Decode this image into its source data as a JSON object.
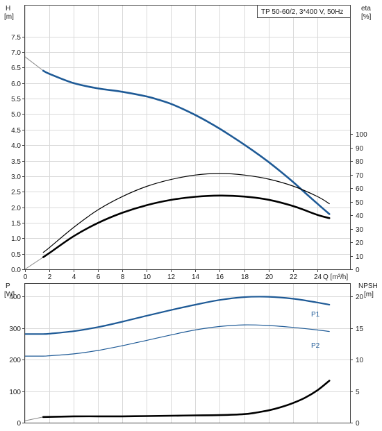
{
  "chart_data": [
    {
      "type": "line",
      "title": "TP 50-60/2, 3*400 V, 50Hz",
      "left_axis": {
        "label_line1": "H",
        "label_line2": "[m]",
        "ylim": [
          0,
          8.5
        ],
        "ticks": [
          "0.0",
          "0.5",
          "1.0",
          "1.5",
          "2.0",
          "2.5",
          "3.0",
          "3.5",
          "4.0",
          "4.5",
          "5.0",
          "5.5",
          "6.0",
          "6.5",
          "7.0",
          "7.5"
        ]
      },
      "right_axis": {
        "label_line1": "eta",
        "label_line2": "[%]",
        "ylim": [
          0,
          195
        ],
        "ticks": [
          "0",
          "10",
          "20",
          "30",
          "40",
          "50",
          "60",
          "70",
          "80",
          "90",
          "100"
        ]
      },
      "x_axis": {
        "label": "Q [m³/h]",
        "xlim": [
          0,
          26.7
        ],
        "ticks": [
          "0",
          "2",
          "4",
          "6",
          "8",
          "10",
          "12",
          "14",
          "16",
          "18",
          "20",
          "22",
          "24"
        ]
      },
      "grid": true,
      "series": [
        {
          "role": "head_extended",
          "axis": "left",
          "color": "#8a8a8a",
          "x": [
            0,
            1.5
          ],
          "y": [
            6.85,
            6.4
          ]
        },
        {
          "role": "head",
          "axis": "left",
          "color": "#1e5a96",
          "x": [
            1.5,
            2,
            4,
            6,
            8,
            10,
            11,
            12,
            13,
            14,
            15,
            16,
            17,
            18,
            19,
            20,
            21,
            22,
            23,
            24,
            25
          ],
          "y": [
            6.4,
            6.3,
            6.0,
            5.83,
            5.72,
            5.57,
            5.46,
            5.33,
            5.16,
            4.97,
            4.76,
            4.53,
            4.28,
            4.02,
            3.75,
            3.46,
            3.15,
            2.82,
            2.47,
            2.12,
            1.78
          ]
        },
        {
          "role": "efficiency_extended",
          "axis": "right",
          "color": "#8a8a8a",
          "x": [
            0,
            1.5
          ],
          "y": [
            0,
            9
          ]
        },
        {
          "role": "efficiency",
          "axis": "right",
          "color": "#000000",
          "x": [
            1.5,
            2,
            4,
            6,
            8,
            10,
            12,
            14,
            16,
            18,
            20,
            22,
            24,
            25
          ],
          "y": [
            9,
            12,
            24.5,
            34.3,
            41.8,
            47.4,
            51.3,
            53.6,
            54.5,
            53.8,
            51.4,
            46.8,
            40.3,
            37.8
          ]
        },
        {
          "role": "efficiency_thin",
          "axis": "right",
          "color": "#000000",
          "x": [
            1.5,
            2,
            4,
            6,
            8,
            10,
            12,
            14,
            16,
            18,
            20,
            22,
            24,
            25
          ],
          "y": [
            12.5,
            16,
            31,
            44,
            53.8,
            61.3,
            66.4,
            69.7,
            70.8,
            69.7,
            66.7,
            61.6,
            53.9,
            48.5
          ]
        }
      ]
    },
    {
      "type": "line",
      "left_axis": {
        "label_line1": "P",
        "label_line2": "[W]",
        "ylim": [
          0,
          440
        ],
        "ticks": [
          "0",
          "100",
          "200",
          "300",
          "400"
        ]
      },
      "right_axis": {
        "label_line1": "NPSH",
        "label_line2": "[m]",
        "ylim": [
          0,
          22
        ],
        "ticks": [
          "0",
          "5",
          "10",
          "15",
          "20"
        ]
      },
      "grid": true,
      "series": [
        {
          "name": "P1",
          "role": "power_p1",
          "axis": "left",
          "color": "#1e5a96",
          "x": [
            0,
            1.5,
            2,
            4,
            6,
            8,
            10,
            12,
            14,
            16,
            18,
            20,
            22,
            24,
            25
          ],
          "y": [
            281,
            281,
            282,
            290,
            303,
            320,
            339,
            357,
            374,
            389,
            398,
            399,
            393,
            381,
            374
          ]
        },
        {
          "name": "P2",
          "role": "power_p2",
          "axis": "left",
          "color": "#1e5a96",
          "x": [
            0,
            1.5,
            2,
            4,
            6,
            8,
            10,
            12,
            14,
            16,
            18,
            20,
            22,
            24,
            25
          ],
          "y": [
            211,
            211,
            212,
            218,
            229,
            244,
            261,
            278,
            294,
            305,
            310,
            308,
            302,
            294,
            289
          ]
        },
        {
          "role": "npsh_extended",
          "axis": "right",
          "color": "#8a8a8a",
          "x": [
            0,
            1.5
          ],
          "y": [
            0.3,
            0.9
          ]
        },
        {
          "role": "npsh",
          "axis": "right",
          "color": "#000000",
          "x": [
            1.5,
            4,
            6,
            8,
            10,
            12,
            14,
            16,
            18,
            19,
            20,
            21,
            22,
            23,
            24,
            25
          ],
          "y": [
            0.9,
            1.0,
            1.0,
            1.0,
            1.05,
            1.1,
            1.15,
            1.2,
            1.35,
            1.6,
            1.95,
            2.45,
            3.1,
            3.95,
            5.1,
            6.65
          ]
        }
      ]
    }
  ]
}
